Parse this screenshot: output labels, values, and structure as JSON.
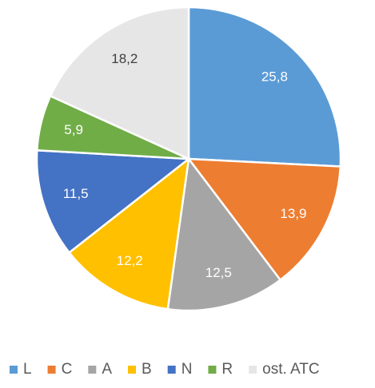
{
  "chart_data": {
    "type": "pie",
    "categories": [
      "L",
      "C",
      "A",
      "B",
      "N",
      "R",
      "ost. ATC"
    ],
    "values": [
      25.8,
      13.9,
      12.5,
      12.2,
      11.5,
      5.9,
      18.2
    ],
    "value_labels": [
      "25,8",
      "13,9",
      "12,5",
      "12,2",
      "11,5",
      "5,9",
      "18,2"
    ],
    "colors": [
      "#5b9bd5",
      "#ed7d31",
      "#a5a5a5",
      "#ffc000",
      "#4472c4",
      "#70ad47",
      "#e7e6e6"
    ],
    "legend": "bottom"
  }
}
